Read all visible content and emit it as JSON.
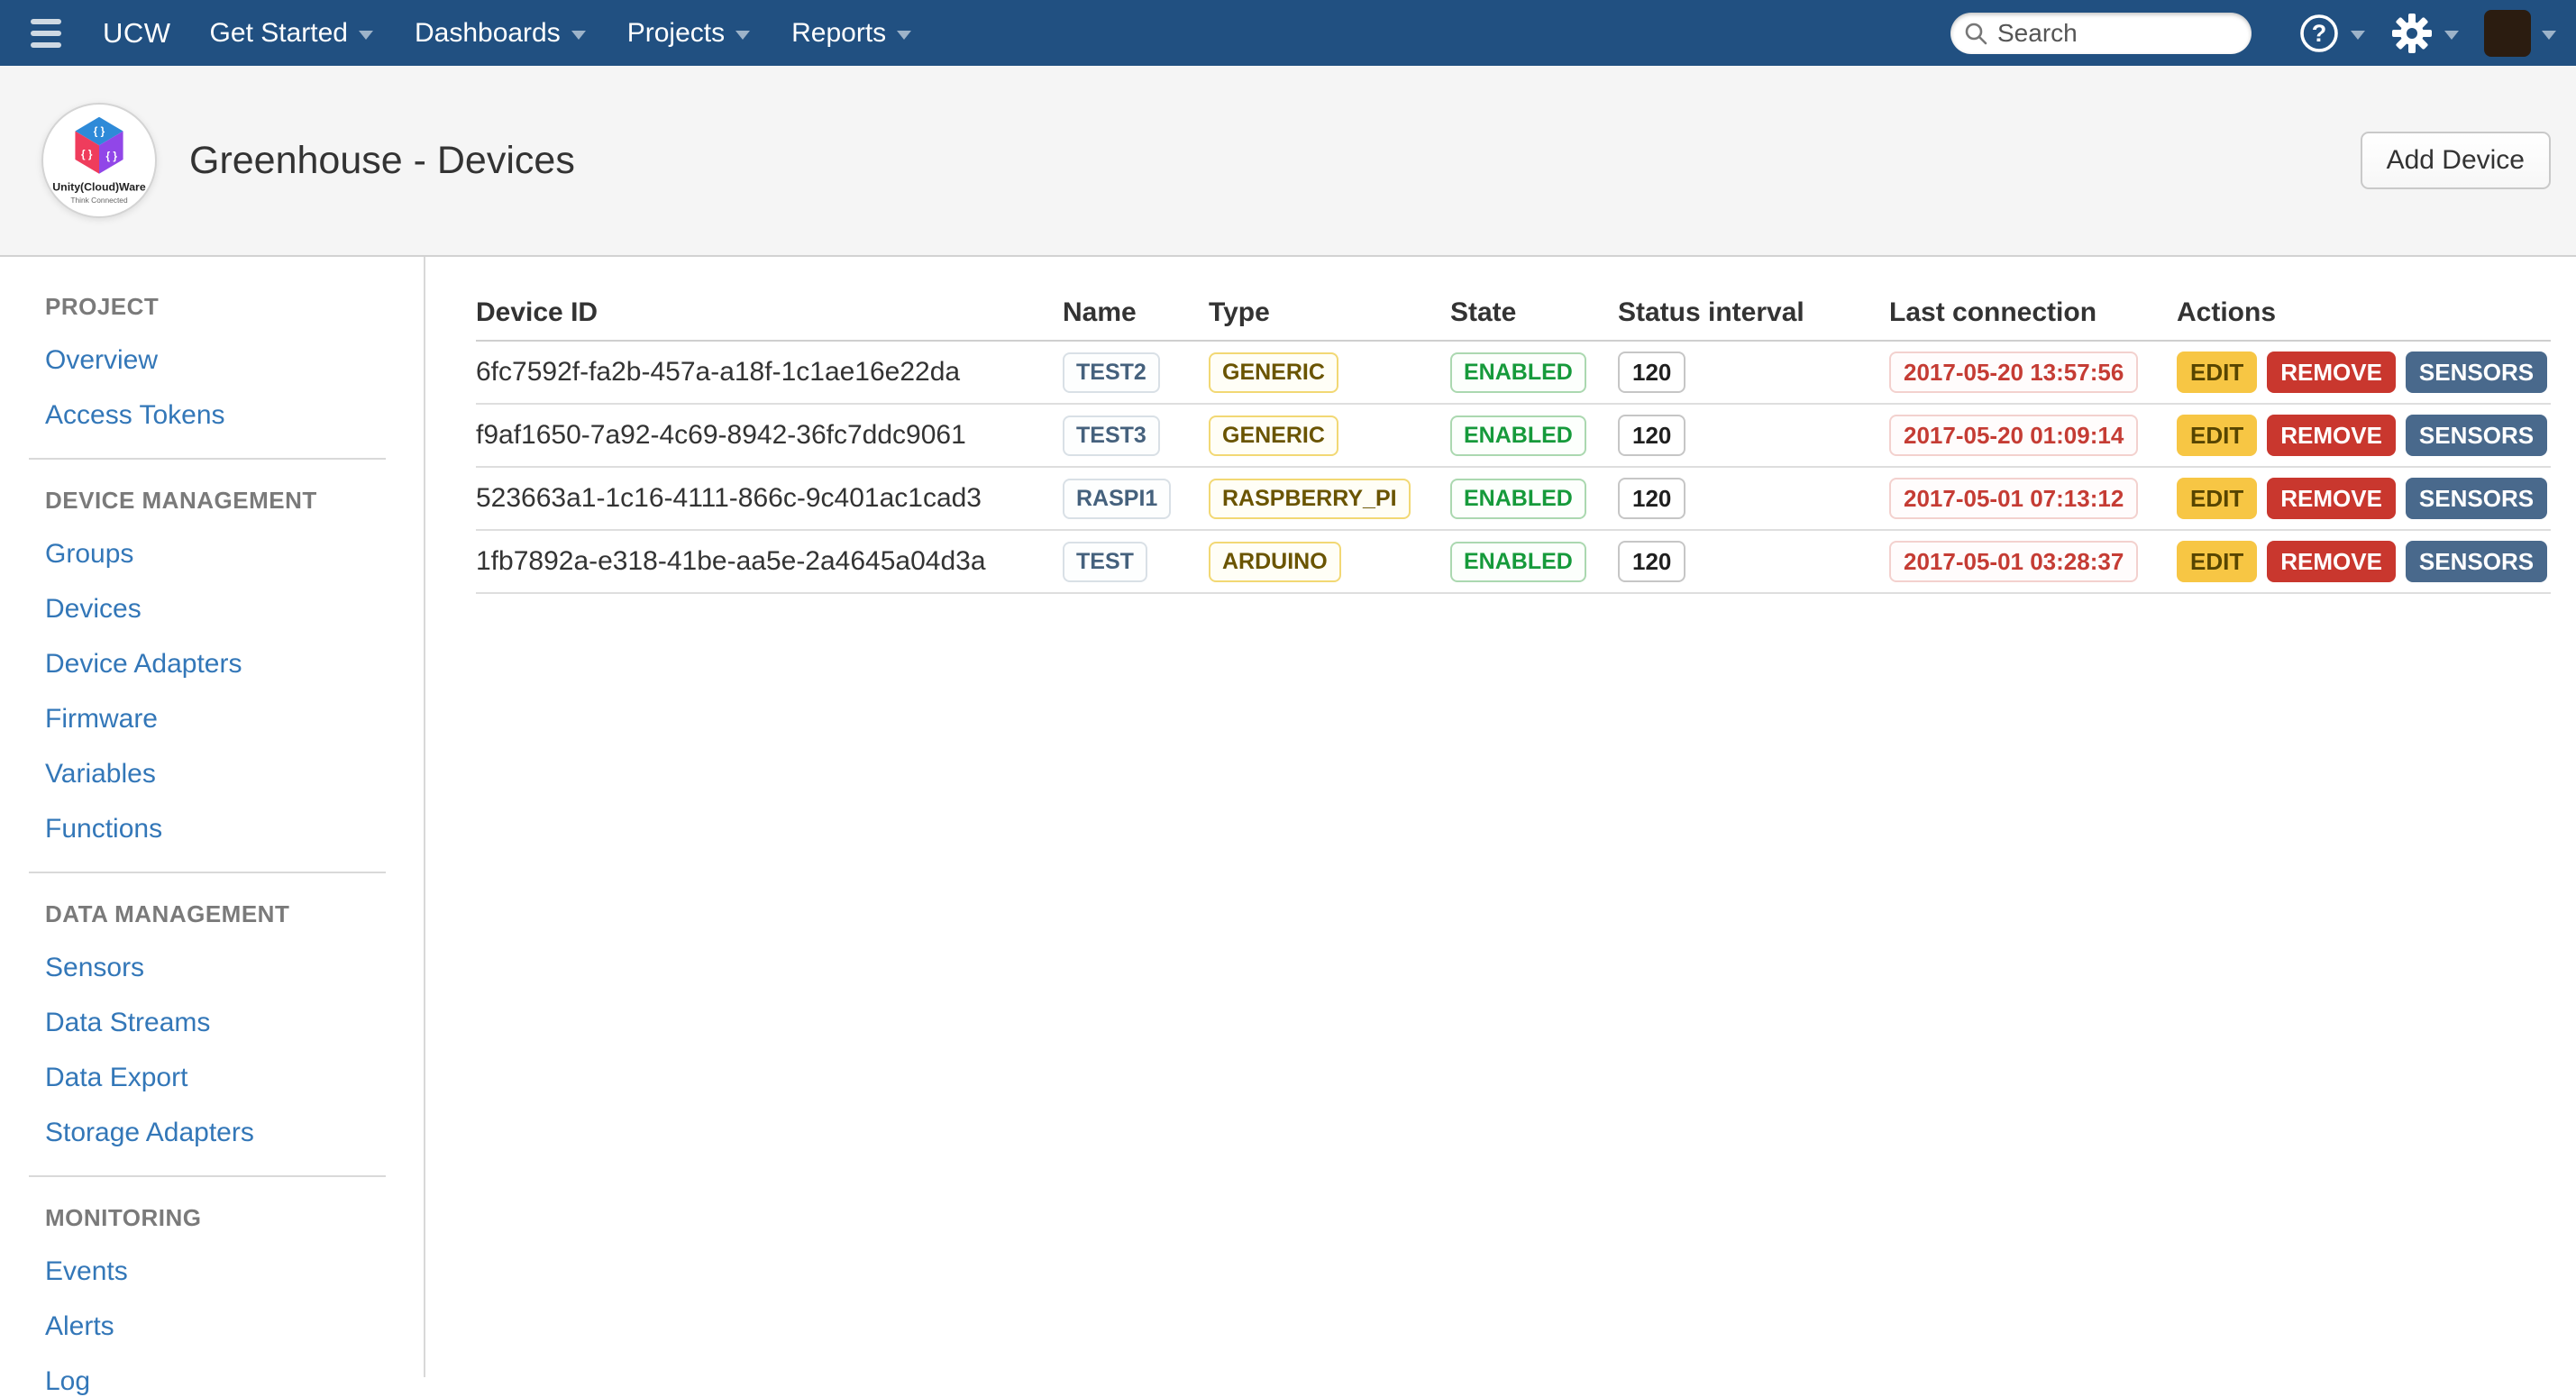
{
  "navbar": {
    "brand": "UCW",
    "items": [
      {
        "label": "Get Started"
      },
      {
        "label": "Dashboards"
      },
      {
        "label": "Projects"
      },
      {
        "label": "Reports"
      }
    ],
    "search_placeholder": "Search"
  },
  "header": {
    "title": "Greenhouse - Devices",
    "add_button": "Add Device",
    "logo": {
      "line1": "Unity(Cloud)Ware",
      "line2": "Think Connected"
    }
  },
  "sidebar": {
    "sections": [
      {
        "heading": "PROJECT",
        "items": [
          "Overview",
          "Access Tokens"
        ]
      },
      {
        "heading": "DEVICE MANAGEMENT",
        "items": [
          "Groups",
          "Devices",
          "Device Adapters",
          "Firmware",
          "Variables",
          "Functions"
        ]
      },
      {
        "heading": "DATA MANAGEMENT",
        "items": [
          "Sensors",
          "Data Streams",
          "Data Export",
          "Storage Adapters"
        ]
      },
      {
        "heading": "MONITORING",
        "items": [
          "Events",
          "Alerts",
          "Log"
        ]
      }
    ]
  },
  "table": {
    "columns": [
      "Device ID",
      "Name",
      "Type",
      "State",
      "Status interval",
      "Last connection",
      "Actions"
    ],
    "rows": [
      {
        "device_id": "6fc7592f-fa2b-457a-a18f-1c1ae16e22da",
        "name": "TEST2",
        "type": "GENERIC",
        "state": "ENABLED",
        "status_interval": "120",
        "last_connection": "2017-05-20 13:57:56",
        "actions": [
          "EDIT",
          "REMOVE",
          "SENSORS"
        ]
      },
      {
        "device_id": "f9af1650-7a92-4c69-8942-36fc7ddc9061",
        "name": "TEST3",
        "type": "GENERIC",
        "state": "ENABLED",
        "status_interval": "120",
        "last_connection": "2017-05-20 01:09:14",
        "actions": [
          "EDIT",
          "REMOVE",
          "SENSORS"
        ]
      },
      {
        "device_id": "523663a1-1c16-4111-866c-9c401ac1cad3",
        "name": "RASPI1",
        "type": "RASPBERRY_PI",
        "state": "ENABLED",
        "status_interval": "120",
        "last_connection": "2017-05-01 07:13:12",
        "actions": [
          "EDIT",
          "REMOVE",
          "SENSORS"
        ]
      },
      {
        "device_id": "1fb7892a-e318-41be-aa5e-2a4645a04d3a",
        "name": "TEST",
        "type": "ARDUINO",
        "state": "ENABLED",
        "status_interval": "120",
        "last_connection": "2017-05-01 03:28:37",
        "actions": [
          "EDIT",
          "REMOVE",
          "SENSORS"
        ]
      }
    ]
  },
  "colors": {
    "navbar-bg": "#215081",
    "link": "#3377b8",
    "title-text": "#333333",
    "name-badge": "#45617d",
    "name-badge-border": "#d9e0e6",
    "type-badge": "#6a5400",
    "type-badge-border": "#f2d874",
    "state-badge": "#169a3b",
    "state-badge-border": "#abd8b0",
    "interval-badge": "#1f1f1f",
    "interval-badge-border": "#c6c6c6",
    "date-badge": "#c53c34",
    "date-badge-border": "#f3d1ce",
    "edit-bg": "#f7c644",
    "edit-text": "#574500",
    "remove-bg": "#c9372e",
    "sensors-bg": "#49698c",
    "logo-blue": "#2e8ad8",
    "logo-red": "#ef3c5c",
    "logo-purple": "#9146e8"
  }
}
